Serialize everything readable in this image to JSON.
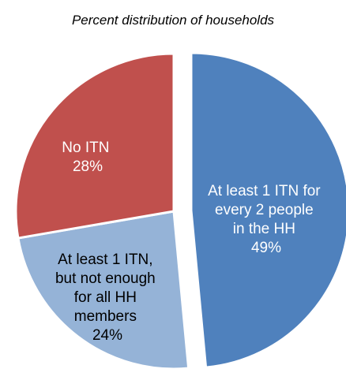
{
  "chart_data": {
    "type": "pie",
    "title": "Percent distribution of households",
    "slices": [
      {
        "label": "At least 1 ITN for every 2 people in the HH",
        "value": 49,
        "value_label": "49%",
        "color": "#4f81bd",
        "exploded": true
      },
      {
        "label": "At least 1 ITN, but not enough for all HH members",
        "value": 24,
        "value_label": "24%",
        "color": "#95b3d7",
        "exploded": false
      },
      {
        "label": "No ITN",
        "value": 28,
        "value_label": "28%",
        "color": "#c0504d",
        "exploded": false
      }
    ]
  }
}
